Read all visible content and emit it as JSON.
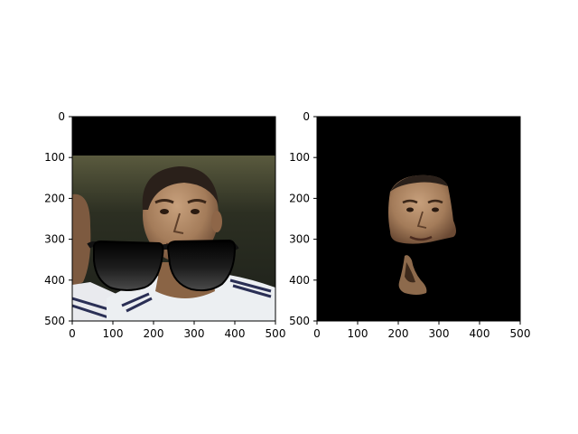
{
  "figure": {
    "background": "#ffffff"
  },
  "chart_data": [
    {
      "type": "image",
      "title": "",
      "xlabel": "",
      "ylabel": "",
      "xlim": [
        0,
        500
      ],
      "ylim": [
        500,
        0
      ],
      "xticks": [
        0,
        100,
        200,
        300,
        400,
        500
      ],
      "yticks": [
        0,
        100,
        200,
        300,
        400,
        500
      ],
      "xtick_labels": [
        "0",
        "100",
        "200",
        "300",
        "400",
        "500"
      ],
      "ytick_labels": [
        "0",
        "100",
        "200",
        "300",
        "400",
        "500"
      ],
      "content": "photo of a man's face wearing cartoon sunglasses",
      "colors": {
        "letterbox": "#000000",
        "lens": "#141414",
        "skin": "#a47c5a",
        "hair": "#2a201a",
        "shirt": "#eceff2"
      }
    },
    {
      "type": "image",
      "title": "",
      "xlabel": "",
      "ylabel": "",
      "xlim": [
        0,
        500
      ],
      "ylim": [
        500,
        0
      ],
      "xticks": [
        0,
        100,
        200,
        300,
        400,
        500
      ],
      "yticks": [
        0,
        100,
        200,
        300,
        400,
        500
      ],
      "xtick_labels": [
        "0",
        "100",
        "200",
        "300",
        "400",
        "500"
      ],
      "ytick_labels": [
        "0",
        "100",
        "200",
        "300",
        "400",
        "500"
      ],
      "content": "segmented face region on black background",
      "colors": {
        "background": "#000000",
        "skin": "#a47c5a"
      }
    }
  ]
}
